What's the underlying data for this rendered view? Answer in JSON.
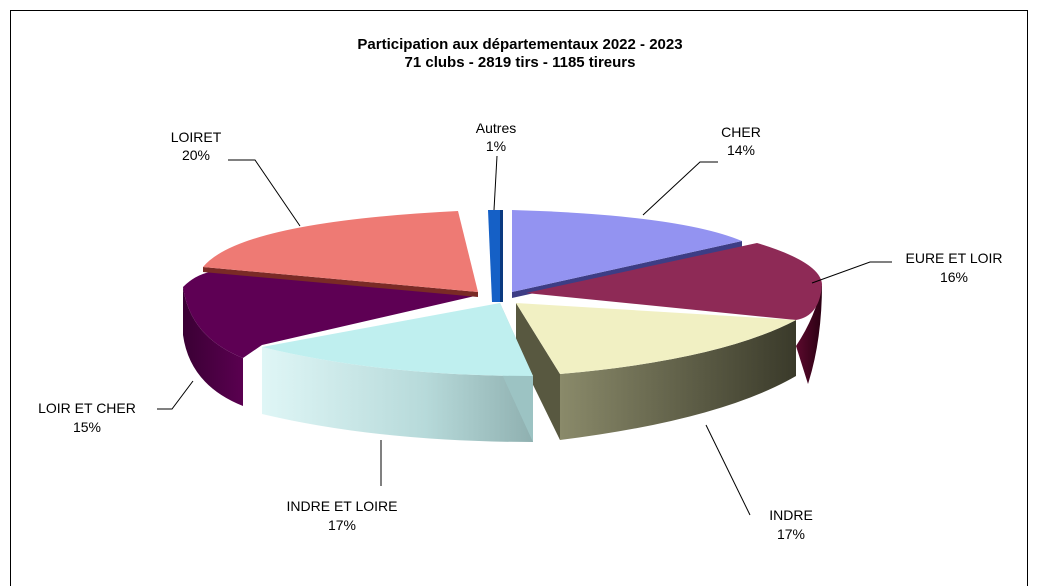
{
  "chart_data": {
    "type": "pie",
    "title": "Participation aux départementaux 2022 - 2023",
    "subtitle": "71 clubs - 2819 tirs - 1185 tireurs",
    "slices": [
      {
        "name": "CHER",
        "pct_label": "14%",
        "value": 14,
        "color": "#9393F1"
      },
      {
        "name": "EURE ET LOIR",
        "pct_label": "16%",
        "value": 16,
        "color": "#8E2A56"
      },
      {
        "name": "INDRE",
        "pct_label": "17%",
        "value": 17,
        "color": "#F1F0C3"
      },
      {
        "name": "INDRE ET LOIRE",
        "pct_label": "17%",
        "value": 17,
        "color": "#BFEFEF"
      },
      {
        "name": "LOIR ET CHER",
        "pct_label": "15%",
        "value": 15,
        "color": "#5E0054"
      },
      {
        "name": "LOIRET",
        "pct_label": "20%",
        "value": 20,
        "color": "#EE7A74"
      },
      {
        "name": "Autres",
        "pct_label": "1%",
        "value": 1,
        "color": "#1560C6"
      }
    ]
  }
}
